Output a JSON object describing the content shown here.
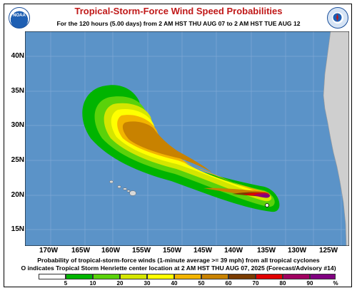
{
  "title": "Tropical-Storm-Force Wind Speed Probabilities",
  "subtitle": "For the 120 hours (5.00 days) from 2 AM HST THU AUG 07 to 2 AM HST TUE AUG 12",
  "logos": {
    "left": "noaa-logo",
    "left_text": "NOAA",
    "right": "nws-logo"
  },
  "map": {
    "lat_labels": [
      "40N",
      "35N",
      "30N",
      "25N",
      "20N",
      "15N"
    ],
    "lon_labels": [
      "170W",
      "165W",
      "160W",
      "155W",
      "150W",
      "145W",
      "140W",
      "135W",
      "130W",
      "125W"
    ],
    "ocean_color": "#5b93c8",
    "land_color": "#cfcfcf"
  },
  "caption_line1": "Probability of tropical-storm-force winds (1-minute average >= 39 mph) from all tropical cyclones",
  "caption_line2": "O indicates Tropical Storm Henriette center location at 2 AM HST THU AUG 07, 2025 (Forecast/Advisory #14)",
  "legend": {
    "labels": [
      "5",
      "10",
      "20",
      "30",
      "40",
      "50",
      "60",
      "70",
      "80",
      "90",
      "%"
    ],
    "colors": [
      "#ffffff",
      "#00b400",
      "#5ad20a",
      "#d4e600",
      "#ffff00",
      "#f2b400",
      "#c88200",
      "#7a3c00",
      "#e00000",
      "#a00060",
      "#800080"
    ]
  }
}
